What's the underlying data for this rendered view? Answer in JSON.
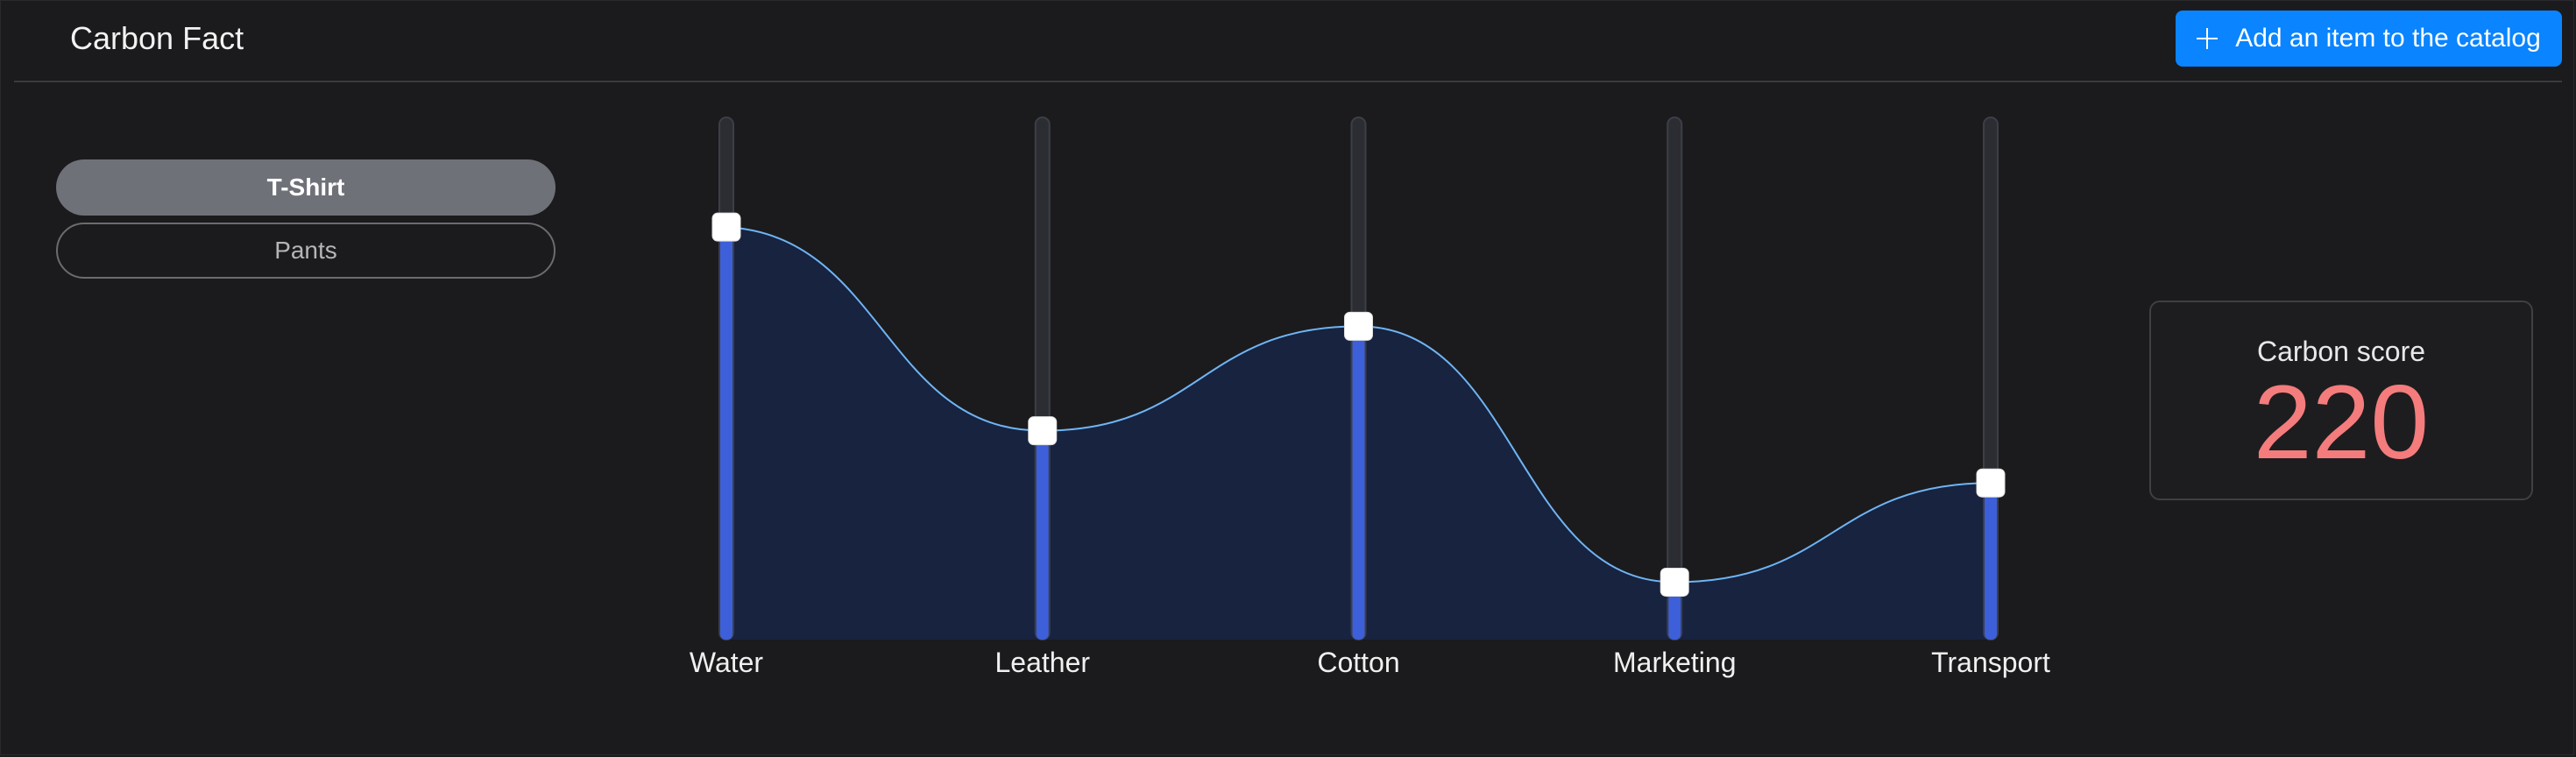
{
  "header": {
    "title": "Carbon Fact",
    "add_button_label": "Add an item to the catalog",
    "add_button_icon": "plus-icon"
  },
  "products": [
    {
      "label": "T-Shirt",
      "selected": true
    },
    {
      "label": "Pants",
      "selected": false
    }
  ],
  "sliders": [
    {
      "label": "Water",
      "value": 0.79
    },
    {
      "label": "Leather",
      "value": 0.4
    },
    {
      "label": "Cotton",
      "value": 0.6
    },
    {
      "label": "Marketing",
      "value": 0.11
    },
    {
      "label": "Transport",
      "value": 0.3
    }
  ],
  "score": {
    "title": "Carbon score",
    "value": "220"
  },
  "colors": {
    "accent": "#0a84ff",
    "fill_bar": "#3d5fd9",
    "curve": "#6fb4f5",
    "area": "#17233f",
    "score": "#f47c7c"
  }
}
